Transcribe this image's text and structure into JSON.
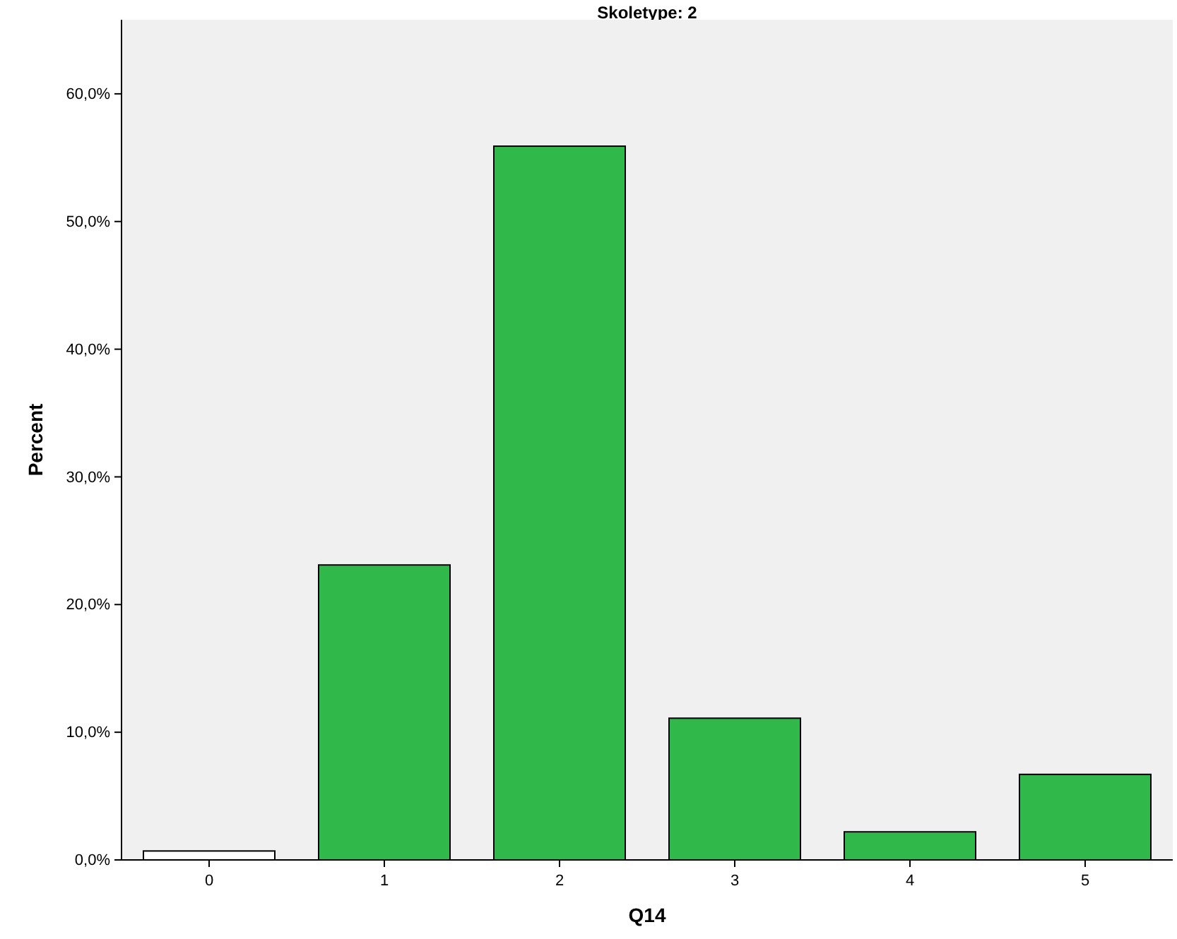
{
  "chart_data": {
    "type": "bar",
    "title": "Skoletype: 2",
    "xlabel": "Q14",
    "ylabel": "Percent",
    "categories": [
      "0",
      "1",
      "2",
      "3",
      "4",
      "5"
    ],
    "values": [
      0.7,
      23.1,
      55.9,
      11.1,
      2.2,
      6.7
    ],
    "colors": [
      "#ffffff",
      "#31b84b",
      "#31b84b",
      "#31b84b",
      "#31b84b",
      "#31b84b"
    ],
    "ylim": [
      0,
      65.8
    ],
    "yticks": [
      {
        "value": 0,
        "label": "0,0%"
      },
      {
        "value": 10,
        "label": "10,0%"
      },
      {
        "value": 20,
        "label": "20,0%"
      },
      {
        "value": 30,
        "label": "30,0%"
      },
      {
        "value": 40,
        "label": "40,0%"
      },
      {
        "value": 50,
        "label": "50,0%"
      },
      {
        "value": 60,
        "label": "60,0%"
      }
    ],
    "grid": false
  }
}
